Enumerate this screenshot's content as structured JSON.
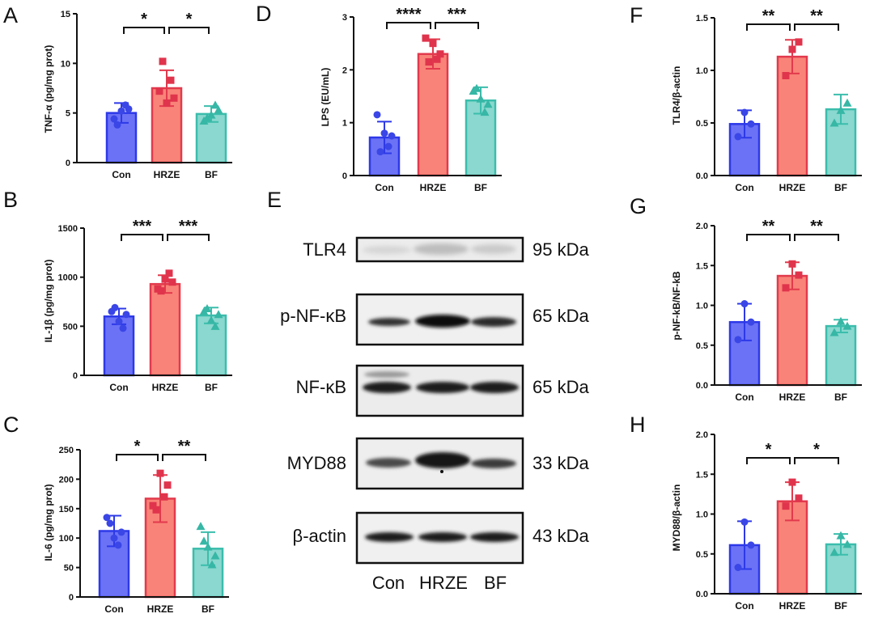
{
  "colors": {
    "Con": {
      "fill": "#6b72f6",
      "stroke": "#2d39e8"
    },
    "HRZE": {
      "fill": "#f98378",
      "stroke": "#e23a4d"
    },
    "BF": {
      "fill": "#8ad8cf",
      "stroke": "#3bbdac"
    },
    "Con_point": "#3a46e6",
    "HRZE_point": "#e0344c",
    "BF_point": "#37b7a6"
  },
  "chart_data": [
    {
      "panel": "A",
      "type": "bar",
      "ylabel": "TNF-α (pg/mg prot)",
      "categories": [
        "Con",
        "HRZE",
        "BF"
      ],
      "ylim": [
        0,
        15
      ],
      "yticks": [
        "0",
        "5",
        "10",
        "15"
      ],
      "tickvals": [
        0,
        5,
        10,
        15
      ],
      "values": [
        5.0,
        7.5,
        4.9
      ],
      "errors": [
        1.0,
        1.8,
        0.8
      ],
      "points": [
        [
          4.4,
          5.2,
          5.4,
          5.8,
          3.8
        ],
        [
          7.2,
          6.0,
          6.5,
          8.3,
          10.2
        ],
        [
          4.2,
          4.8,
          5.3,
          5.8,
          4.5
        ]
      ],
      "comparisons": [
        {
          "from": 0,
          "to": 1,
          "label": "*"
        },
        {
          "from": 1,
          "to": 2,
          "label": "*"
        }
      ]
    },
    {
      "panel": "B",
      "type": "bar",
      "ylabel": "IL-1β (pg/mg prot)",
      "categories": [
        "Con",
        "HRZE",
        "BF"
      ],
      "ylim": [
        0,
        1500
      ],
      "yticks": [
        "0",
        "500",
        "1000",
        "1500"
      ],
      "tickvals": [
        0,
        500,
        1000,
        1500
      ],
      "values": [
        600,
        930,
        610
      ],
      "errors": [
        80,
        90,
        80
      ],
      "points": [
        [
          650,
          550,
          620,
          480,
          690
        ],
        [
          880,
          980,
          950,
          1040,
          860
        ],
        [
          650,
          560,
          620,
          500,
          680
        ]
      ],
      "comparisons": [
        {
          "from": 0,
          "to": 1,
          "label": "***"
        },
        {
          "from": 1,
          "to": 2,
          "label": "***"
        }
      ]
    },
    {
      "panel": "C",
      "type": "bar",
      "ylabel": "IL-6 (pg/mg prot)",
      "categories": [
        "Con",
        "HRZE",
        "BF"
      ],
      "ylim": [
        0,
        250
      ],
      "yticks": [
        "0",
        "50",
        "100",
        "150",
        "200",
        "250"
      ],
      "tickvals": [
        0,
        50,
        100,
        150,
        200,
        250
      ],
      "values": [
        112,
        167,
        82
      ],
      "errors": [
        26,
        40,
        28
      ],
      "points": [
        [
          135,
          100,
          110,
          88,
          125
        ],
        [
          155,
          210,
          190,
          170,
          148
        ],
        [
          120,
          85,
          70,
          55,
          95
        ]
      ],
      "comparisons": [
        {
          "from": 0,
          "to": 1,
          "label": "*"
        },
        {
          "from": 1,
          "to": 2,
          "label": "**"
        }
      ]
    },
    {
      "panel": "D",
      "type": "bar",
      "ylabel": "LPS (EU/mL)",
      "categories": [
        "Con",
        "HRZE",
        "BF"
      ],
      "ylim": [
        0,
        3
      ],
      "yticks": [
        "0",
        "1",
        "2",
        "3"
      ],
      "tickvals": [
        0,
        1,
        2,
        3
      ],
      "values": [
        0.72,
        2.3,
        1.42
      ],
      "errors": [
        0.3,
        0.28,
        0.25
      ],
      "points": [
        [
          1.15,
          0.8,
          0.75,
          0.55,
          0.45
        ],
        [
          2.6,
          2.5,
          2.3,
          2.2,
          2.15
        ],
        [
          1.6,
          1.45,
          1.35,
          1.2,
          1.65
        ]
      ],
      "comparisons": [
        {
          "from": 0,
          "to": 1,
          "label": "****"
        },
        {
          "from": 1,
          "to": 2,
          "label": "***"
        }
      ]
    },
    {
      "panel": "F",
      "type": "bar",
      "ylabel": "TLR4/β-actin",
      "categories": [
        "Con",
        "HRZE",
        "BF"
      ],
      "ylim": [
        0,
        1.5
      ],
      "yticks": [
        "0.0",
        "0.5",
        "1.0",
        "1.5"
      ],
      "tickvals": [
        0,
        0.5,
        1.0,
        1.5
      ],
      "values": [
        0.49,
        1.13,
        0.63
      ],
      "errors": [
        0.13,
        0.16,
        0.14
      ],
      "points": [
        [
          0.6,
          0.49,
          0.37
        ],
        [
          1.2,
          1.27,
          0.95
        ],
        [
          0.62,
          0.69,
          0.5
        ]
      ],
      "comparisons": [
        {
          "from": 0,
          "to": 1,
          "label": "**"
        },
        {
          "from": 1,
          "to": 2,
          "label": "**"
        }
      ]
    },
    {
      "panel": "G",
      "type": "bar",
      "ylabel": "p-NF-kB/NF-kB",
      "categories": [
        "Con",
        "HRZE",
        "BF"
      ],
      "ylim": [
        0,
        2.0
      ],
      "yticks": [
        "0.0",
        "0.5",
        "1.0",
        "1.5",
        "2.0"
      ],
      "tickvals": [
        0,
        0.5,
        1.0,
        1.5,
        2.0
      ],
      "values": [
        0.79,
        1.37,
        0.74
      ],
      "errors": [
        0.23,
        0.17,
        0.08
      ],
      "points": [
        [
          1.02,
          0.79,
          0.57
        ],
        [
          1.52,
          1.38,
          1.22
        ],
        [
          0.8,
          0.74,
          0.66
        ]
      ],
      "comparisons": [
        {
          "from": 0,
          "to": 1,
          "label": "**"
        },
        {
          "from": 1,
          "to": 2,
          "label": "**"
        }
      ]
    },
    {
      "panel": "H",
      "type": "bar",
      "ylabel": "MYD88/β-actin",
      "categories": [
        "Con",
        "HRZE",
        "BF"
      ],
      "ylim": [
        0,
        2.0
      ],
      "yticks": [
        "0.0",
        "0.5",
        "1.0",
        "1.5",
        "2.0"
      ],
      "tickvals": [
        0,
        0.5,
        1.0,
        1.5,
        2.0
      ],
      "values": [
        0.61,
        1.16,
        0.62
      ],
      "errors": [
        0.3,
        0.24,
        0.13
      ],
      "points": [
        [
          0.9,
          0.61,
          0.33
        ],
        [
          1.4,
          1.2,
          1.1
        ],
        [
          0.73,
          0.62,
          0.52
        ]
      ],
      "comparisons": [
        {
          "from": 0,
          "to": 1,
          "label": "*"
        },
        {
          "from": 1,
          "to": 2,
          "label": "*"
        }
      ]
    }
  ],
  "western_blot": {
    "panel": "E",
    "rows": [
      {
        "protein": "TLR4",
        "size": "95 kDa"
      },
      {
        "protein": "p-NF-κB",
        "size": "65 kDa"
      },
      {
        "protein": "NF-κB",
        "size": "65 kDa"
      },
      {
        "protein": "MYD88",
        "size": "33 kDa"
      },
      {
        "protein": "β-actin",
        "size": "43 kDa"
      }
    ],
    "lanes": [
      "Con",
      "HRZE",
      "BF"
    ]
  }
}
